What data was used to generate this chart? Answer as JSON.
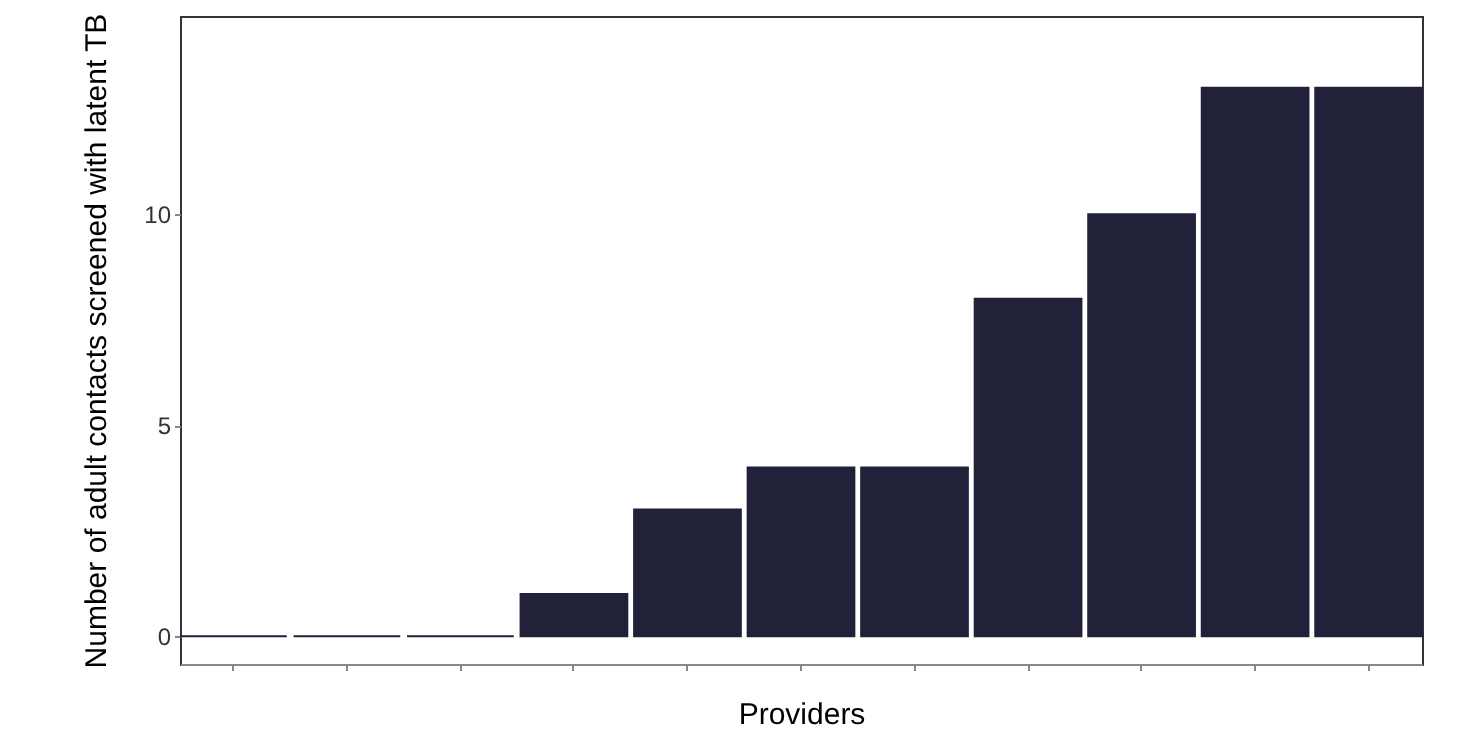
{
  "chart_data": {
    "type": "bar",
    "xlabel": "Providers",
    "ylabel": "Number of adult contacts screened with latent TB",
    "categories": [
      null,
      null,
      null,
      null,
      null,
      null,
      null,
      null,
      null,
      null,
      null
    ],
    "values": [
      0,
      0,
      0,
      1,
      3,
      4,
      4,
      8,
      10,
      13,
      13
    ],
    "color": "#21213a",
    "ylim": [
      -0.66,
      14.7
    ],
    "yticks": [
      0,
      5,
      10
    ],
    "grid": false,
    "tick_labels": "y"
  }
}
